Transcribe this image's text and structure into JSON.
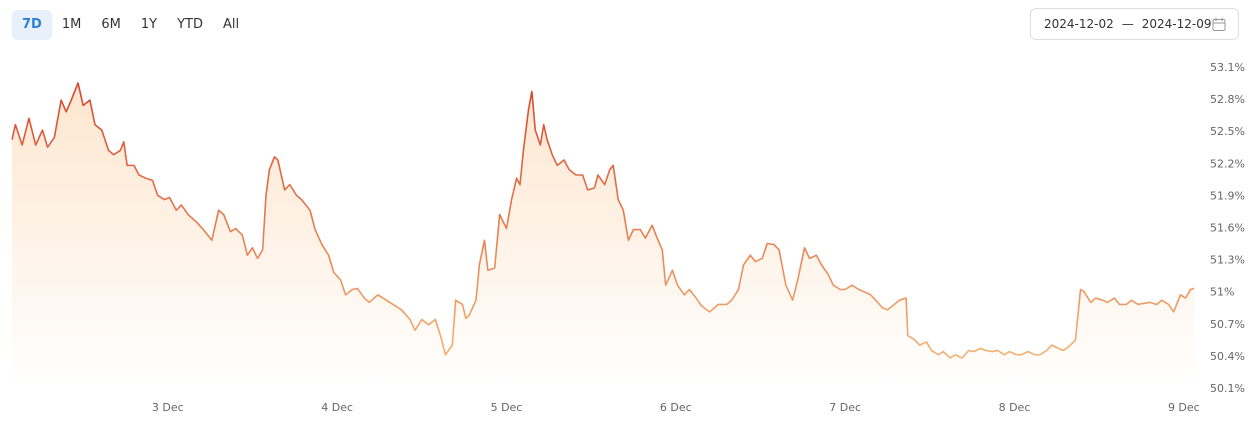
{
  "range_buttons": [
    "7D",
    "1M",
    "6M",
    "1Y",
    "YTD",
    "All"
  ],
  "active_button": 0,
  "date_range": {
    "start": "2024-12-02",
    "separator": "—",
    "end": "2024-12-09"
  },
  "chart_data": {
    "type": "line",
    "line_colors": [
      "#d4402a",
      "#f7bd7a"
    ],
    "fill_color": "#fde3c9",
    "xlim": [
      2.08,
      9.06
    ],
    "xticks": [
      {
        "value": 3,
        "label": "3 Dec"
      },
      {
        "value": 4,
        "label": "4 Dec"
      },
      {
        "value": 5,
        "label": "5 Dec"
      },
      {
        "value": 6,
        "label": "6 Dec"
      },
      {
        "value": 7,
        "label": "7 Dec"
      },
      {
        "value": 8,
        "label": "8 Dec"
      },
      {
        "value": 9,
        "label": "9 Dec"
      }
    ],
    "ylim": [
      50.1,
      53.1
    ],
    "yticks": [
      {
        "value": 50.1,
        "label": "50.1%"
      },
      {
        "value": 50.4,
        "label": "50.4%"
      },
      {
        "value": 50.7,
        "label": "50.7%"
      },
      {
        "value": 51,
        "label": "51%"
      },
      {
        "value": 51.3,
        "label": "51.3%"
      },
      {
        "value": 51.6,
        "label": "51.6%"
      },
      {
        "value": 51.9,
        "label": "51.9%"
      },
      {
        "value": 52.2,
        "label": "52.2%"
      },
      {
        "value": 52.5,
        "label": "52.5%"
      },
      {
        "value": 52.8,
        "label": "52.8%"
      },
      {
        "value": 53.1,
        "label": "53.1%"
      }
    ],
    "x": [
      2.08,
      2.1,
      2.14,
      2.18,
      2.22,
      2.26,
      2.29,
      2.33,
      2.37,
      2.4,
      2.43,
      2.47,
      2.5,
      2.54,
      2.57,
      2.61,
      2.65,
      2.68,
      2.72,
      2.74,
      2.76,
      2.8,
      2.83,
      2.87,
      2.91,
      2.94,
      2.98,
      3.01,
      3.05,
      3.08,
      3.12,
      3.17,
      3.21,
      3.26,
      3.3,
      3.33,
      3.37,
      3.4,
      3.44,
      3.47,
      3.5,
      3.53,
      3.56,
      3.58,
      3.6,
      3.63,
      3.65,
      3.69,
      3.72,
      3.76,
      3.79,
      3.84,
      3.87,
      3.91,
      3.95,
      3.98,
      4.02,
      4.05,
      4.09,
      4.12,
      4.16,
      4.19,
      4.24,
      4.29,
      4.33,
      4.38,
      4.43,
      4.46,
      4.5,
      4.54,
      4.58,
      4.61,
      4.64,
      4.68,
      4.7,
      4.74,
      4.76,
      4.78,
      4.82,
      4.84,
      4.87,
      4.89,
      4.93,
      4.96,
      5.0,
      5.03,
      5.06,
      5.08,
      5.1,
      5.13,
      5.15,
      5.17,
      5.2,
      5.22,
      5.24,
      5.27,
      5.3,
      5.34,
      5.37,
      5.41,
      5.45,
      5.48,
      5.52,
      5.54,
      5.58,
      5.61,
      5.63,
      5.66,
      5.69,
      5.72,
      5.75,
      5.79,
      5.82,
      5.86,
      5.89,
      5.92,
      5.94,
      5.98,
      6.01,
      6.05,
      6.08,
      6.12,
      6.15,
      6.2,
      6.25,
      6.3,
      6.33,
      6.37,
      6.4,
      6.44,
      6.47,
      6.51,
      6.54,
      6.58,
      6.61,
      6.65,
      6.69,
      6.72,
      6.76,
      6.79,
      6.83,
      6.86,
      6.9,
      6.93,
      6.97,
      7.0,
      7.04,
      7.08,
      7.11,
      7.15,
      7.18,
      7.22,
      7.25,
      7.29,
      7.32,
      7.36,
      7.37,
      7.41,
      7.44,
      7.48,
      7.51,
      7.55,
      7.58,
      7.62,
      7.65,
      7.69,
      7.73,
      7.76,
      7.8,
      7.83,
      7.87,
      7.9,
      7.94,
      7.97,
      8.01,
      8.04,
      8.08,
      8.12,
      8.15,
      8.19,
      8.22,
      8.26,
      8.29,
      8.33,
      8.36,
      8.39,
      8.41,
      8.45,
      8.48,
      8.52,
      8.55,
      8.59,
      8.62,
      8.66,
      8.69,
      8.73,
      8.76,
      8.8,
      8.84,
      8.87,
      8.91,
      8.94,
      8.98,
      9.01,
      9.04,
      9.06
    ],
    "values": [
      52.43,
      52.57,
      52.38,
      52.63,
      52.38,
      52.52,
      52.36,
      52.45,
      52.8,
      52.69,
      52.8,
      52.96,
      52.75,
      52.8,
      52.57,
      52.52,
      52.33,
      52.29,
      52.33,
      52.41,
      52.19,
      52.19,
      52.1,
      52.07,
      52.05,
      51.91,
      51.87,
      51.89,
      51.77,
      51.82,
      51.73,
      51.66,
      51.59,
      51.49,
      51.77,
      51.73,
      51.57,
      51.6,
      51.54,
      51.35,
      51.42,
      51.32,
      51.4,
      51.91,
      52.15,
      52.27,
      52.24,
      51.96,
      52.01,
      51.91,
      51.87,
      51.77,
      51.59,
      51.45,
      51.35,
      51.19,
      51.12,
      50.98,
      51.03,
      51.04,
      50.95,
      50.91,
      50.98,
      50.93,
      50.89,
      50.84,
      50.75,
      50.65,
      50.75,
      50.7,
      50.75,
      50.6,
      50.42,
      50.51,
      50.93,
      50.89,
      50.76,
      50.79,
      50.93,
      51.26,
      51.49,
      51.21,
      51.23,
      51.73,
      51.6,
      51.87,
      52.07,
      52.01,
      52.33,
      52.71,
      52.88,
      52.52,
      52.38,
      52.57,
      52.43,
      52.29,
      52.19,
      52.24,
      52.15,
      52.1,
      52.1,
      51.96,
      51.98,
      52.1,
      52.01,
      52.15,
      52.19,
      51.87,
      51.77,
      51.49,
      51.59,
      51.59,
      51.51,
      51.63,
      51.51,
      51.4,
      51.07,
      51.21,
      51.07,
      50.98,
      51.03,
      50.95,
      50.88,
      50.82,
      50.89,
      50.89,
      50.93,
      51.03,
      51.26,
      51.35,
      51.29,
      51.32,
      51.46,
      51.45,
      51.4,
      51.07,
      50.93,
      51.12,
      51.42,
      51.32,
      51.35,
      51.26,
      51.17,
      51.07,
      51.03,
      51.03,
      51.07,
      51.03,
      51.01,
      50.98,
      50.93,
      50.86,
      50.84,
      50.89,
      50.93,
      50.95,
      50.6,
      50.56,
      50.51,
      50.54,
      50.46,
      50.42,
      50.45,
      50.39,
      50.42,
      50.39,
      50.46,
      50.45,
      50.48,
      50.46,
      50.45,
      50.46,
      50.42,
      50.45,
      50.42,
      50.42,
      50.45,
      50.42,
      50.42,
      50.46,
      50.51,
      50.48,
      50.46,
      50.51,
      50.56,
      51.03,
      51.01,
      50.91,
      50.95,
      50.93,
      50.91,
      50.95,
      50.89,
      50.89,
      50.93,
      50.89,
      50.9,
      50.91,
      50.89,
      50.93,
      50.89,
      50.82,
      50.98,
      50.95,
      51.03,
      51.04
    ]
  }
}
